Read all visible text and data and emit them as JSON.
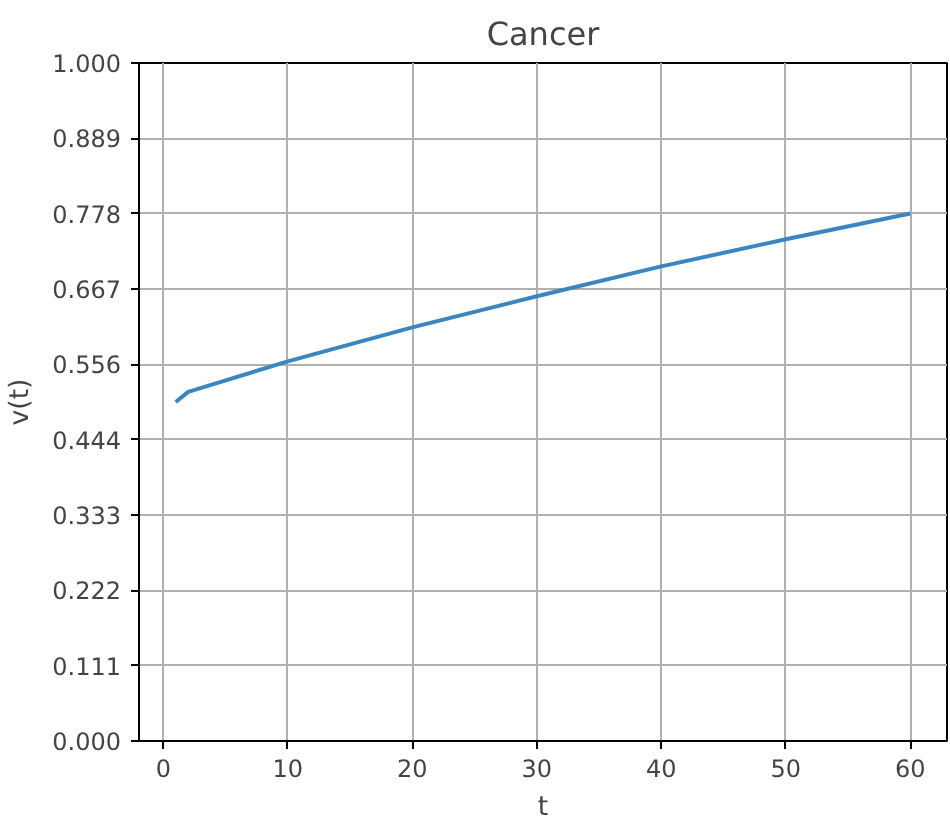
{
  "chart_data": {
    "type": "line",
    "title": "Cancer",
    "xlabel": "t",
    "ylabel": "v(t)",
    "x": [
      1,
      2,
      10,
      20,
      30,
      40,
      50,
      60
    ],
    "series": [
      {
        "color": "#3b86c0",
        "values": [
          0.5,
          0.515,
          0.56,
          0.61,
          0.656,
          0.7,
          0.74,
          0.778
        ]
      }
    ],
    "xlim": [
      -1.95,
      62.95
    ],
    "xticks": [
      0,
      10,
      20,
      30,
      40,
      50,
      60
    ],
    "ylim": [
      0,
      1
    ],
    "yticks": [
      {
        "value": 0,
        "label": "0.000"
      },
      {
        "value": 0.111,
        "label": "0.111"
      },
      {
        "value": 0.222,
        "label": "0.222"
      },
      {
        "value": 0.333,
        "label": "0.333"
      },
      {
        "value": 0.444,
        "label": "0.444"
      },
      {
        "value": 0.556,
        "label": "0.556"
      },
      {
        "value": 0.667,
        "label": "0.667"
      },
      {
        "value": 0.778,
        "label": "0.778"
      },
      {
        "value": 0.889,
        "label": "0.889"
      },
      {
        "value": 1,
        "label": "1.000"
      }
    ],
    "grid": true
  }
}
